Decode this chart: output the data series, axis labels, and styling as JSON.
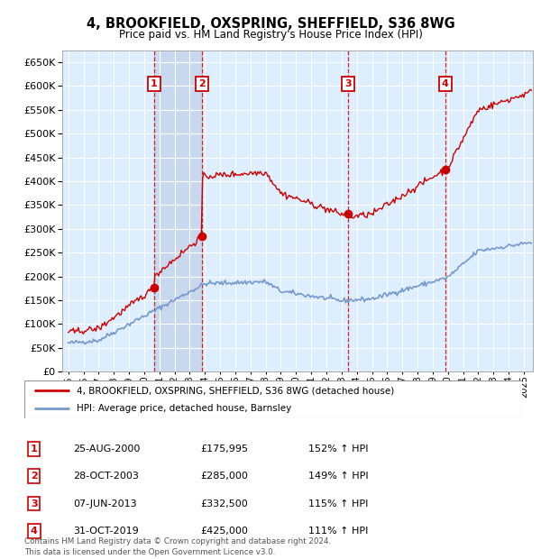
{
  "title": "4, BROOKFIELD, OXSPRING, SHEFFIELD, S36 8WG",
  "subtitle": "Price paid vs. HM Land Registry's House Price Index (HPI)",
  "ylim": [
    0,
    675000
  ],
  "yticks": [
    0,
    50000,
    100000,
    150000,
    200000,
    250000,
    300000,
    350000,
    400000,
    450000,
    500000,
    550000,
    600000,
    650000
  ],
  "xlim_start": 1994.6,
  "xlim_end": 2025.6,
  "background_color": "#ffffff",
  "plot_bg_color": "#ddeeff",
  "shade_bg_color": "#c8d8ee",
  "grid_color": "#ffffff",
  "red_line_color": "#cc0000",
  "blue_line_color": "#7799cc",
  "transactions": [
    {
      "num": 1,
      "date_str": "25-AUG-2000",
      "date_x": 2000.65,
      "price": 175995
    },
    {
      "num": 2,
      "date_str": "28-OCT-2003",
      "date_x": 2003.82,
      "price": 285000
    },
    {
      "num": 3,
      "date_str": "07-JUN-2013",
      "date_x": 2013.43,
      "price": 332500
    },
    {
      "num": 4,
      "date_str": "31-OCT-2019",
      "date_x": 2019.82,
      "price": 425000
    }
  ],
  "legend_line1": "4, BROOKFIELD, OXSPRING, SHEFFIELD, S36 8WG (detached house)",
  "legend_line2": "HPI: Average price, detached house, Barnsley",
  "footer": "Contains HM Land Registry data © Crown copyright and database right 2024.\nThis data is licensed under the Open Government Licence v3.0.",
  "table_rows": [
    [
      "1",
      "25-AUG-2000",
      "£175,995",
      "152% ↑ HPI"
    ],
    [
      "2",
      "28-OCT-2003",
      "£285,000",
      "149% ↑ HPI"
    ],
    [
      "3",
      "07-JUN-2013",
      "£332,500",
      "115% ↑ HPI"
    ],
    [
      "4",
      "31-OCT-2019",
      "£425,000",
      "111% ↑ HPI"
    ]
  ]
}
